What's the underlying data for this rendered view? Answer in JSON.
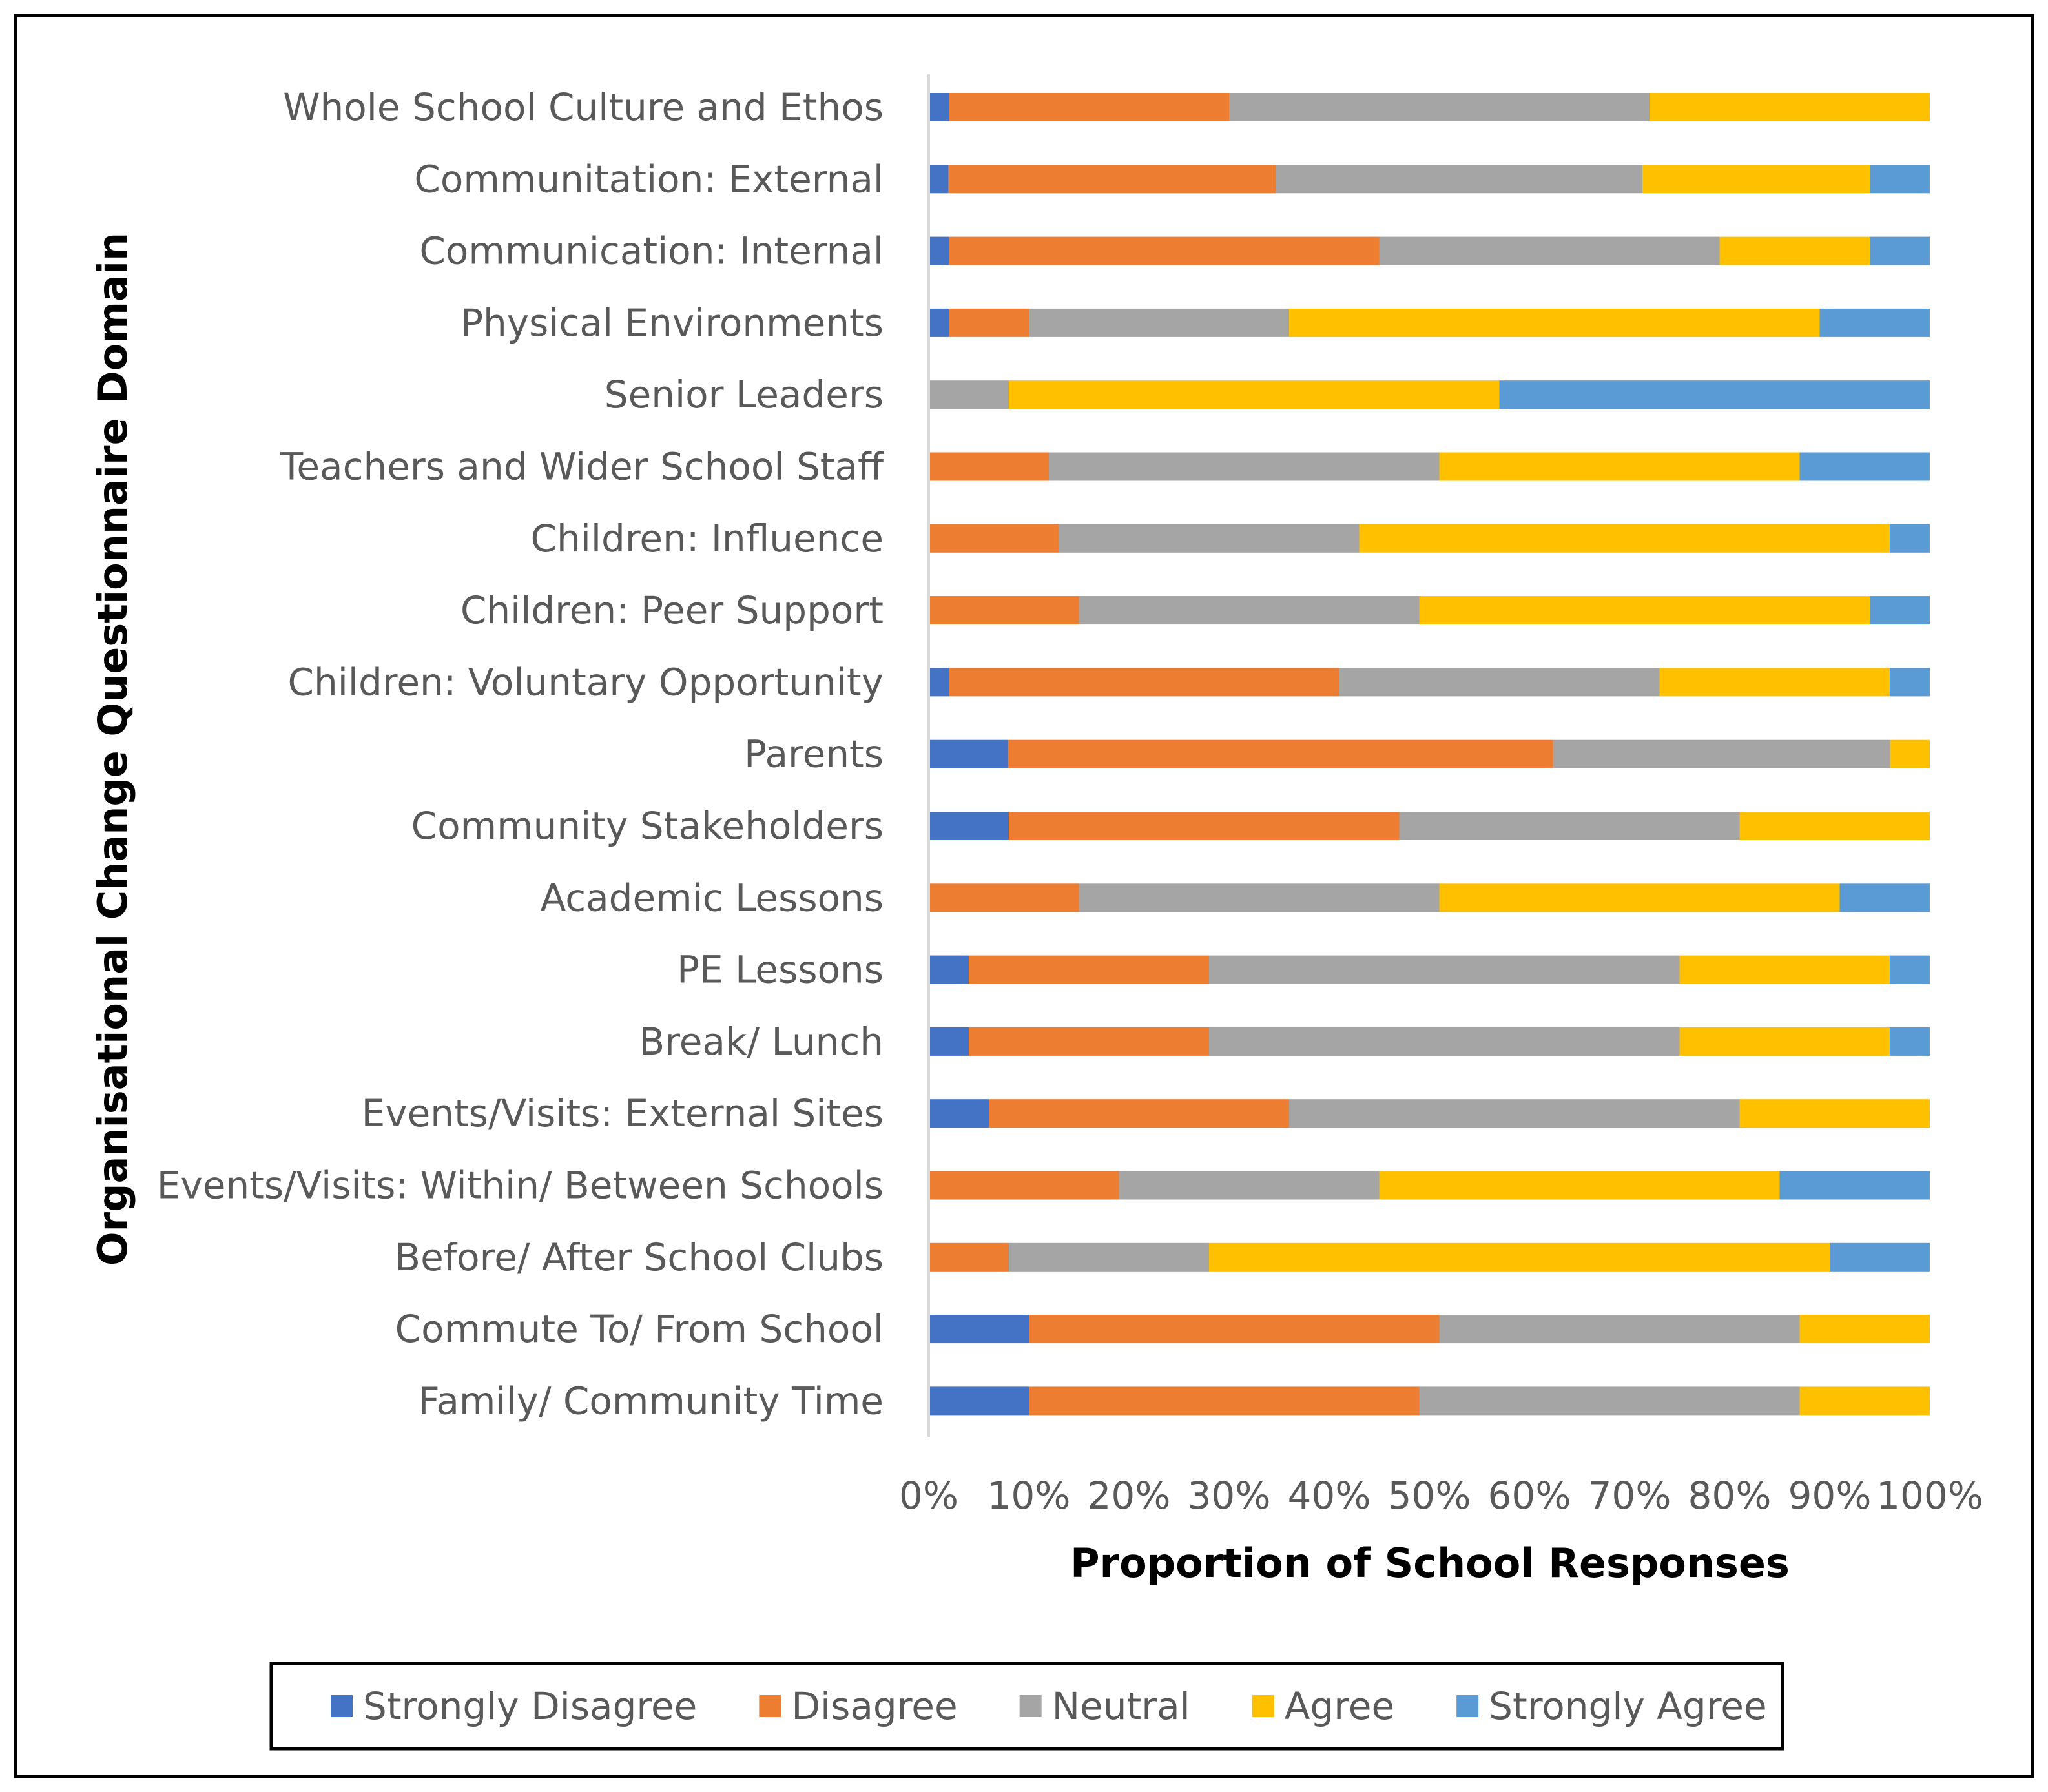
{
  "chart_data": {
    "type": "bar",
    "orientation": "horizontal",
    "stacked": "percent",
    "xlabel": "Proportion of School Responses",
    "ylabel": "Organisational Change Questionnaire Domain",
    "xlim": [
      0,
      100
    ],
    "x_ticks": [
      "0%",
      "10%",
      "20%",
      "30%",
      "40%",
      "50%",
      "60%",
      "70%",
      "80%",
      "90%",
      "100%"
    ],
    "legend_position": "bottom",
    "grid": false,
    "categories": [
      "Whole School Culture and Ethos",
      "Communitation: External",
      "Communication: Internal",
      "Physical Environments",
      "Senior Leaders",
      "Teachers and Wider School Staff",
      "Children: Influence",
      "Children: Peer Support",
      "Children: Voluntary Opportunity",
      "Parents",
      "Community Stakeholders",
      "Academic Lessons",
      "PE Lessons",
      "Break/ Lunch",
      "Events/Visits: External Sites",
      "Events/Visits: Within/ Between Schools",
      "Before/ After School Clubs",
      "Commute To/ From School",
      "Family/ Community Time"
    ],
    "series": [
      {
        "name": "Strongly Disagree",
        "color": "#4472C4",
        "values": [
          2,
          2,
          2,
          2,
          0,
          0,
          0,
          0,
          2,
          8,
          8,
          0,
          4,
          4,
          6,
          0,
          0,
          10,
          10
        ]
      },
      {
        "name": "Disagree",
        "color": "#ED7D31",
        "values": [
          28,
          33,
          43,
          8,
          0,
          12,
          13,
          15,
          39,
          55,
          39,
          15,
          24,
          24,
          30,
          19,
          8,
          41,
          39
        ]
      },
      {
        "name": "Neutral",
        "color": "#A5A5A5",
        "values": [
          42,
          37,
          34,
          26,
          8,
          39,
          30,
          34,
          32,
          34,
          34,
          36,
          47,
          47,
          45,
          26,
          20,
          36,
          38
        ]
      },
      {
        "name": "Agree",
        "color": "#FFC000",
        "values": [
          28,
          23,
          15,
          53,
          49,
          36,
          53,
          45,
          23,
          4,
          19,
          40,
          21,
          21,
          19,
          40,
          62,
          13,
          13
        ]
      },
      {
        "name": "Strongly Agree",
        "color": "#5B9BD5",
        "values": [
          0,
          6,
          6,
          11,
          43,
          13,
          4,
          6,
          4,
          0,
          0,
          9,
          4,
          4,
          0,
          15,
          10,
          0,
          0
        ]
      }
    ]
  }
}
